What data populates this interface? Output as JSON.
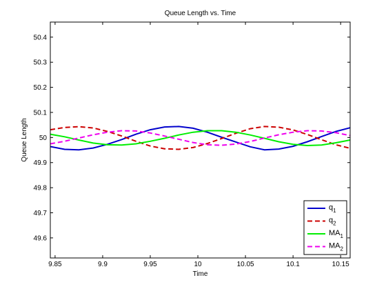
{
  "chart_data": {
    "type": "line",
    "title": "Queue Length vs. Time",
    "xlabel": "Time",
    "ylabel": "Queue Length",
    "xlim": [
      9.845,
      10.16
    ],
    "ylim": [
      49.52,
      50.46
    ],
    "xticks": [
      9.85,
      9.9,
      9.95,
      10,
      10.05,
      10.1,
      10.15
    ],
    "xtick_labels": [
      "9.85",
      "9.9",
      "9.95",
      "10",
      "10.05",
      "10.1",
      "10.15"
    ],
    "yticks": [
      49.6,
      49.7,
      49.8,
      49.9,
      50,
      50.1,
      50.2,
      50.3,
      50.4
    ],
    "ytick_labels": [
      "49.6",
      "49.7",
      "49.8",
      "49.9",
      "50",
      "50.1",
      "50.2",
      "50.3",
      "50.4"
    ],
    "grid": false,
    "legend_position": "bottom-right",
    "x": [
      9.845,
      9.86,
      9.875,
      9.89,
      9.905,
      9.92,
      9.935,
      9.95,
      9.965,
      9.98,
      9.995,
      10.01,
      10.025,
      10.04,
      10.055,
      10.07,
      10.085,
      10.1,
      10.115,
      10.13,
      10.145,
      10.16
    ],
    "series": [
      {
        "name": "q",
        "sub": "1",
        "color": "#0000cc",
        "dash": "solid",
        "values": [
          49.964,
          49.953,
          49.951,
          49.958,
          49.973,
          49.992,
          50.013,
          50.031,
          50.042,
          50.044,
          50.037,
          50.021,
          50.001,
          49.982,
          49.963,
          49.951,
          49.954,
          49.965,
          49.983,
          50.004,
          50.024,
          50.039
        ]
      },
      {
        "name": "q",
        "sub": "2",
        "color": "#cc0000",
        "dash": "dashed",
        "values": [
          50.031,
          50.04,
          50.043,
          50.038,
          50.024,
          50.006,
          49.985,
          49.966,
          49.955,
          49.953,
          49.96,
          49.976,
          49.996,
          50.017,
          50.035,
          50.044,
          50.041,
          50.03,
          50.012,
          49.991,
          49.971,
          49.957
        ]
      },
      {
        "name": "MA",
        "sub": "1",
        "color": "#00ee00",
        "dash": "solid",
        "values": [
          50.013,
          50.003,
          49.99,
          49.978,
          49.971,
          49.97,
          49.975,
          49.985,
          49.997,
          50.01,
          50.021,
          50.027,
          50.027,
          50.021,
          50.01,
          49.997,
          49.983,
          49.973,
          49.968,
          49.97,
          49.979,
          49.99
        ]
      },
      {
        "name": "MA",
        "sub": "2",
        "color": "#ee00ee",
        "dash": "dashed",
        "values": [
          49.975,
          49.985,
          49.998,
          50.011,
          50.021,
          50.027,
          50.026,
          50.018,
          50.006,
          49.993,
          49.98,
          49.971,
          49.969,
          49.974,
          49.984,
          49.998,
          50.011,
          50.021,
          50.027,
          50.026,
          50.019,
          50.008
        ]
      }
    ]
  }
}
